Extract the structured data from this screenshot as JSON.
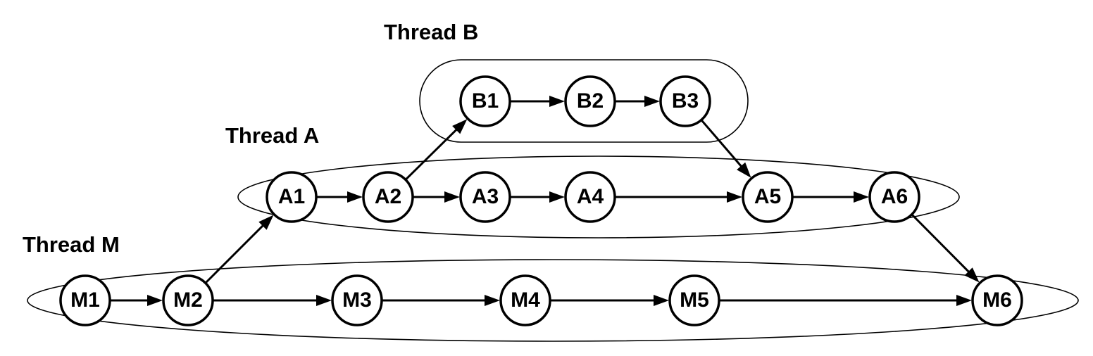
{
  "threads": [
    {
      "id": "B",
      "label": "Thread B"
    },
    {
      "id": "A",
      "label": "Thread A"
    },
    {
      "id": "M",
      "label": "Thread M"
    }
  ],
  "nodes": [
    {
      "id": "B1",
      "label": "B1",
      "thread": "B"
    },
    {
      "id": "B2",
      "label": "B2",
      "thread": "B"
    },
    {
      "id": "B3",
      "label": "B3",
      "thread": "B"
    },
    {
      "id": "A1",
      "label": "A1",
      "thread": "A"
    },
    {
      "id": "A2",
      "label": "A2",
      "thread": "A"
    },
    {
      "id": "A3",
      "label": "A3",
      "thread": "A"
    },
    {
      "id": "A4",
      "label": "A4",
      "thread": "A"
    },
    {
      "id": "A5",
      "label": "A5",
      "thread": "A"
    },
    {
      "id": "A6",
      "label": "A6",
      "thread": "A"
    },
    {
      "id": "M1",
      "label": "M1",
      "thread": "M"
    },
    {
      "id": "M2",
      "label": "M2",
      "thread": "M"
    },
    {
      "id": "M3",
      "label": "M3",
      "thread": "M"
    },
    {
      "id": "M4",
      "label": "M4",
      "thread": "M"
    },
    {
      "id": "M5",
      "label": "M5",
      "thread": "M"
    },
    {
      "id": "M6",
      "label": "M6",
      "thread": "M"
    }
  ],
  "edges": [
    {
      "from": "B1",
      "to": "B2"
    },
    {
      "from": "B2",
      "to": "B3"
    },
    {
      "from": "A1",
      "to": "A2"
    },
    {
      "from": "A2",
      "to": "A3"
    },
    {
      "from": "A3",
      "to": "A4"
    },
    {
      "from": "A4",
      "to": "A5"
    },
    {
      "from": "A5",
      "to": "A6"
    },
    {
      "from": "M1",
      "to": "M2"
    },
    {
      "from": "M2",
      "to": "M3"
    },
    {
      "from": "M3",
      "to": "M4"
    },
    {
      "from": "M4",
      "to": "M5"
    },
    {
      "from": "M5",
      "to": "M6"
    },
    {
      "from": "M2",
      "to": "A1"
    },
    {
      "from": "A2",
      "to": "B1"
    },
    {
      "from": "B3",
      "to": "A5"
    },
    {
      "from": "A6",
      "to": "M6"
    }
  ]
}
